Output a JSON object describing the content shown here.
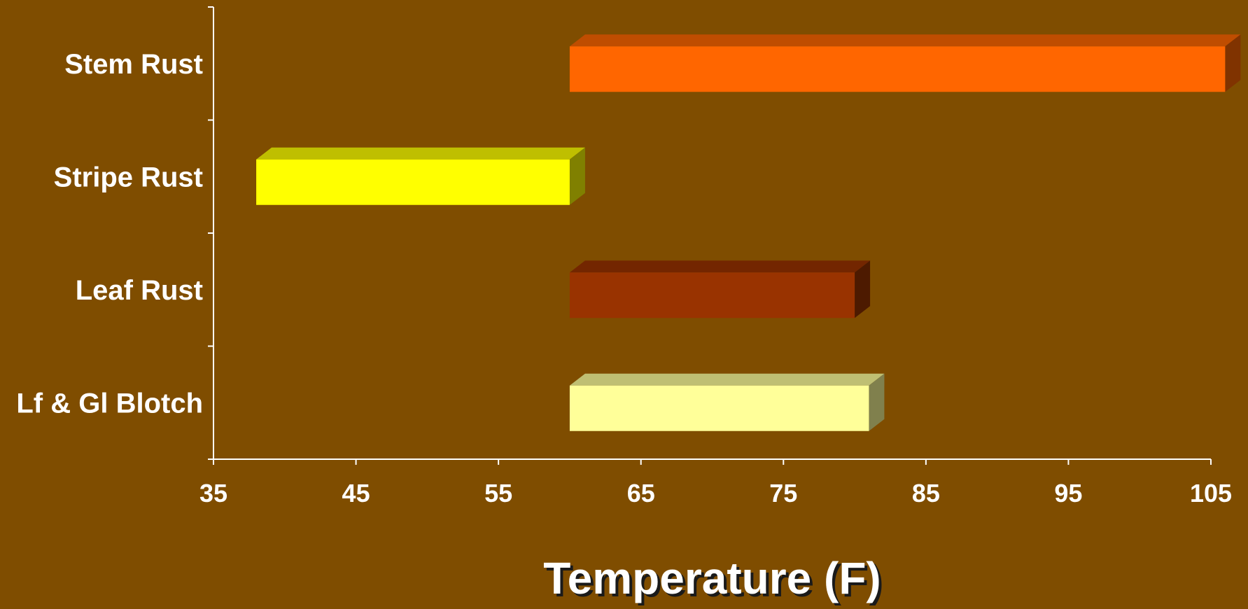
{
  "chart_data": {
    "type": "bar",
    "orientation": "horizontal",
    "style": "3d-floating-range",
    "categories": [
      "Stem Rust",
      "Stripe Rust",
      "Leaf Rust",
      "Lf & Gl Blotch"
    ],
    "series": [
      {
        "ranges": [
          {
            "category": "Stem Rust",
            "start": 60,
            "end": 106,
            "color": "#ff6600"
          },
          {
            "category": "Stripe Rust",
            "start": 38,
            "end": 60,
            "color": "#ffff00"
          },
          {
            "category": "Leaf Rust",
            "start": 60,
            "end": 80,
            "color": "#993300"
          },
          {
            "category": "Lf & Gl Blotch",
            "start": 60,
            "end": 81,
            "color": "#ffff99"
          }
        ]
      }
    ],
    "xlabel": "Temperature (F)",
    "ylabel": "",
    "xlim": [
      35,
      105
    ],
    "xticks": [
      35,
      45,
      55,
      65,
      75,
      85,
      95,
      105
    ],
    "grid": false,
    "legend": "none",
    "colors": {
      "background": "#7f4d00",
      "axis": "#ffffff",
      "text": "#ffffff"
    }
  }
}
